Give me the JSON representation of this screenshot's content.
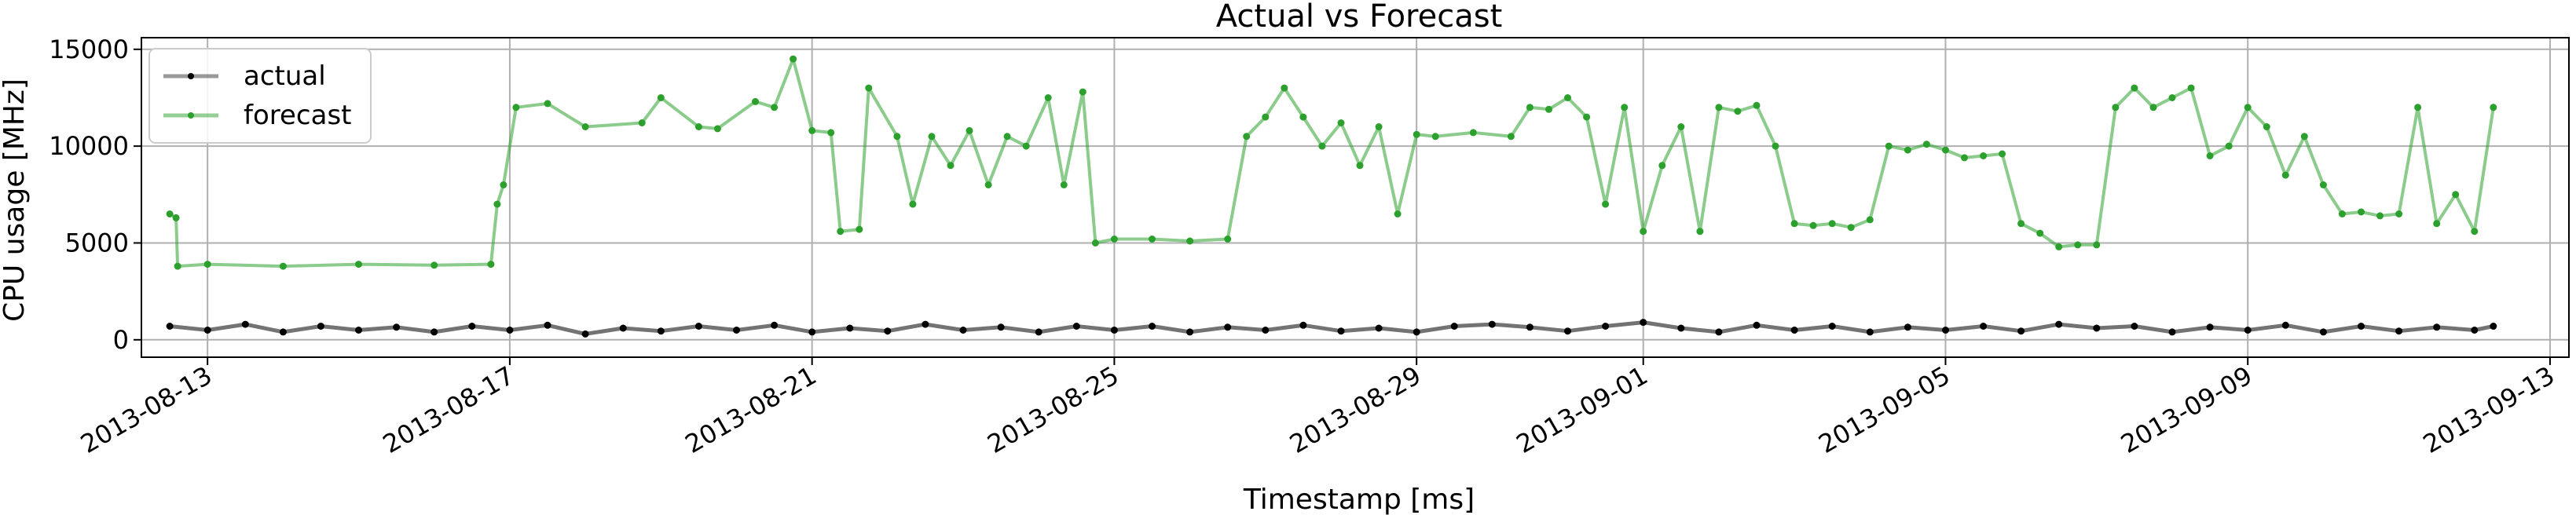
{
  "chart_data": {
    "type": "line",
    "title": "Actual vs Forecast",
    "xlabel": "Timestamp [ms]",
    "ylabel": "CPU usage [MHz]",
    "xlim": [
      "2013-08-12T03:00",
      "2013-09-13T06:00"
    ],
    "ylim": [
      -900,
      15600
    ],
    "x_ticks": [
      "2013-08-13",
      "2013-08-17",
      "2013-08-21",
      "2013-08-25",
      "2013-08-29",
      "2013-09-01",
      "2013-09-05",
      "2013-09-09",
      "2013-09-13"
    ],
    "y_ticks": [
      0,
      5000,
      10000,
      15000
    ],
    "y_tick_labels": [
      "0",
      "5000",
      "10000",
      "15000"
    ],
    "grid": true,
    "legend_position": "top-left",
    "series": [
      {
        "name": "actual",
        "color": "#000000",
        "x": [
          "2013-08-12T12:00",
          "2013-08-13T00:00",
          "2013-08-13T12:00",
          "2013-08-14T00:00",
          "2013-08-14T12:00",
          "2013-08-15T00:00",
          "2013-08-15T12:00",
          "2013-08-16T00:00",
          "2013-08-16T12:00",
          "2013-08-17T00:00",
          "2013-08-17T12:00",
          "2013-08-18T00:00",
          "2013-08-18T12:00",
          "2013-08-19T00:00",
          "2013-08-19T12:00",
          "2013-08-20T00:00",
          "2013-08-20T12:00",
          "2013-08-21T00:00",
          "2013-08-21T12:00",
          "2013-08-22T00:00",
          "2013-08-22T12:00",
          "2013-08-23T00:00",
          "2013-08-23T12:00",
          "2013-08-24T00:00",
          "2013-08-24T12:00",
          "2013-08-25T00:00",
          "2013-08-25T12:00",
          "2013-08-26T00:00",
          "2013-08-26T12:00",
          "2013-08-27T00:00",
          "2013-08-27T12:00",
          "2013-08-28T00:00",
          "2013-08-28T12:00",
          "2013-08-29T00:00",
          "2013-08-29T12:00",
          "2013-08-30T00:00",
          "2013-08-30T12:00",
          "2013-08-31T00:00",
          "2013-08-31T12:00",
          "2013-09-01T00:00",
          "2013-09-01T12:00",
          "2013-09-02T00:00",
          "2013-09-02T12:00",
          "2013-09-03T00:00",
          "2013-09-03T12:00",
          "2013-09-04T00:00",
          "2013-09-04T12:00",
          "2013-09-05T00:00",
          "2013-09-05T12:00",
          "2013-09-06T00:00",
          "2013-09-06T12:00",
          "2013-09-07T00:00",
          "2013-09-07T12:00",
          "2013-09-08T00:00",
          "2013-09-08T12:00",
          "2013-09-09T00:00",
          "2013-09-09T12:00",
          "2013-09-10T00:00",
          "2013-09-10T12:00",
          "2013-09-11T00:00",
          "2013-09-11T12:00",
          "2013-09-12T00:00",
          "2013-09-12T06:00"
        ],
        "y": [
          700,
          500,
          800,
          400,
          700,
          500,
          650,
          400,
          700,
          500,
          750,
          300,
          600,
          450,
          700,
          500,
          750,
          400,
          600,
          450,
          800,
          500,
          650,
          400,
          700,
          500,
          700,
          400,
          650,
          500,
          750,
          450,
          600,
          400,
          700,
          800,
          650,
          450,
          700,
          900,
          600,
          400,
          750,
          500,
          700,
          400,
          650,
          500,
          700,
          450,
          800,
          600,
          700,
          400,
          650,
          500,
          750,
          400,
          700,
          450,
          650,
          500,
          700
        ]
      },
      {
        "name": "forecast",
        "color": "#2ca02c",
        "x": [
          "2013-08-12T12:00",
          "2013-08-12T14:00",
          "2013-08-12T14:30",
          "2013-08-13T00:00",
          "2013-08-14T00:00",
          "2013-08-15T00:00",
          "2013-08-16T00:00",
          "2013-08-16T18:00",
          "2013-08-16T20:00",
          "2013-08-16T22:00",
          "2013-08-17T02:00",
          "2013-08-17T12:00",
          "2013-08-18T00:00",
          "2013-08-18T18:00",
          "2013-08-19T00:00",
          "2013-08-19T12:00",
          "2013-08-19T18:00",
          "2013-08-20T06:00",
          "2013-08-20T12:00",
          "2013-08-20T18:00",
          "2013-08-21T00:00",
          "2013-08-21T06:00",
          "2013-08-21T09:00",
          "2013-08-21T15:00",
          "2013-08-21T18:00",
          "2013-08-22T03:00",
          "2013-08-22T08:00",
          "2013-08-22T14:00",
          "2013-08-22T20:00",
          "2013-08-23T02:00",
          "2013-08-23T08:00",
          "2013-08-23T14:00",
          "2013-08-23T20:00",
          "2013-08-24T03:00",
          "2013-08-24T08:00",
          "2013-08-24T14:00",
          "2013-08-24T18:00",
          "2013-08-25T00:00",
          "2013-08-25T12:00",
          "2013-08-26T00:00",
          "2013-08-26T12:00",
          "2013-08-26T18:00",
          "2013-08-27T00:00",
          "2013-08-27T06:00",
          "2013-08-27T12:00",
          "2013-08-27T18:00",
          "2013-08-28T00:00",
          "2013-08-28T06:00",
          "2013-08-28T12:00",
          "2013-08-28T18:00",
          "2013-08-29T00:00",
          "2013-08-29T06:00",
          "2013-08-29T18:00",
          "2013-08-30T06:00",
          "2013-08-30T12:00",
          "2013-08-30T18:00",
          "2013-08-31T00:00",
          "2013-08-31T06:00",
          "2013-08-31T12:00",
          "2013-08-31T18:00",
          "2013-09-01T00:00",
          "2013-09-01T06:00",
          "2013-09-01T12:00",
          "2013-09-01T18:00",
          "2013-09-02T00:00",
          "2013-09-02T06:00",
          "2013-09-02T12:00",
          "2013-09-02T18:00",
          "2013-09-03T00:00",
          "2013-09-03T06:00",
          "2013-09-03T12:00",
          "2013-09-03T18:00",
          "2013-09-04T00:00",
          "2013-09-04T06:00",
          "2013-09-04T12:00",
          "2013-09-04T18:00",
          "2013-09-05T00:00",
          "2013-09-05T06:00",
          "2013-09-05T12:00",
          "2013-09-05T18:00",
          "2013-09-06T00:00",
          "2013-09-06T06:00",
          "2013-09-06T12:00",
          "2013-09-06T18:00",
          "2013-09-07T00:00",
          "2013-09-07T06:00",
          "2013-09-07T12:00",
          "2013-09-07T18:00",
          "2013-09-08T00:00",
          "2013-09-08T06:00",
          "2013-09-08T12:00",
          "2013-09-08T18:00",
          "2013-09-09T00:00",
          "2013-09-09T06:00",
          "2013-09-09T12:00",
          "2013-09-09T18:00",
          "2013-09-10T00:00",
          "2013-09-10T06:00",
          "2013-09-10T12:00",
          "2013-09-10T18:00",
          "2013-09-11T00:00",
          "2013-09-11T06:00",
          "2013-09-11T12:00",
          "2013-09-11T18:00",
          "2013-09-12T00:00",
          "2013-09-12T06:00"
        ],
        "y": [
          6500,
          6300,
          3800,
          3900,
          3800,
          3900,
          3850,
          3900,
          7000,
          8000,
          12000,
          12200,
          11000,
          11200,
          12500,
          11000,
          10900,
          12300,
          12000,
          14500,
          10800,
          10700,
          5600,
          5700,
          13000,
          10500,
          7000,
          10500,
          9000,
          10800,
          8000,
          10500,
          10000,
          12500,
          8000,
          12800,
          5000,
          5200,
          5200,
          5100,
          5200,
          10500,
          11500,
          13000,
          11500,
          10000,
          11200,
          9000,
          11000,
          6500,
          10600,
          10500,
          10700,
          10500,
          12000,
          11900,
          12500,
          11500,
          7000,
          12000,
          5600,
          9000,
          11000,
          5600,
          12000,
          11800,
          12100,
          10000,
          6000,
          5900,
          6000,
          5800,
          6200,
          10000,
          9800,
          10100,
          9800,
          9400,
          9500,
          9600,
          6000,
          5500,
          4800,
          4900,
          4900,
          12000,
          13000,
          12000,
          12500,
          13000,
          9500,
          10000,
          12000,
          11000,
          8500,
          10500,
          8000,
          6500,
          6600,
          6400,
          6500,
          12000,
          6000,
          7500,
          5600,
          12000
        ]
      }
    ]
  }
}
